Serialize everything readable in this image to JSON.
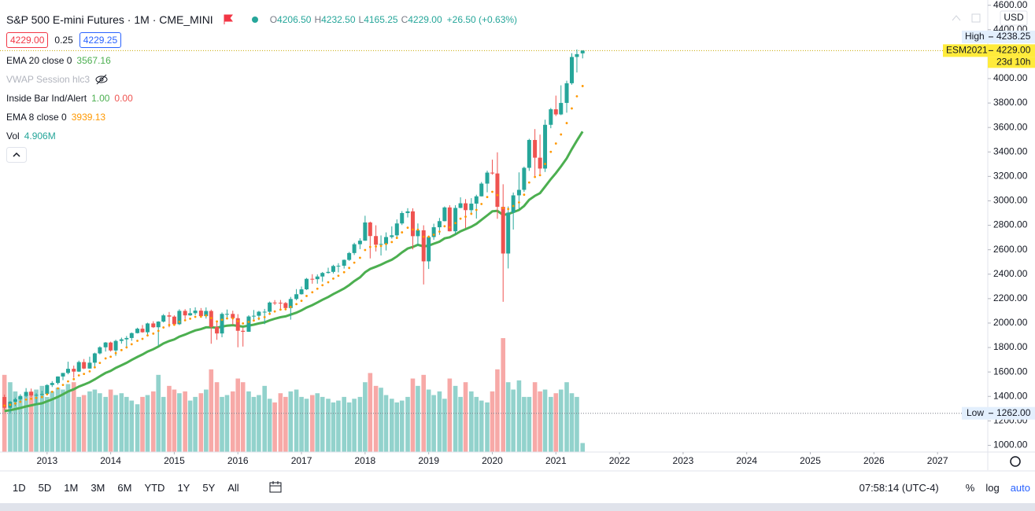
{
  "header": {
    "title": "S&P 500 E-mini Futures · 1M · CME_MINI",
    "ohlc": [
      {
        "key": "O",
        "value": "4206.50"
      },
      {
        "key": "H",
        "value": "4232.50"
      },
      {
        "key": "L",
        "value": "4165.25"
      },
      {
        "key": "C",
        "value": "4229.00"
      }
    ],
    "change": "+26.50 (+0.63%)",
    "bid": "4229.00",
    "spread": "0.25",
    "ask": "4229.25",
    "indicators": [
      {
        "name": "EMA 20 close 0",
        "values": [
          "3567.16"
        ],
        "colors": [
          "#4caf50"
        ]
      },
      {
        "name": "VWAP Session hlc3"
      },
      {
        "name": "Inside Bar Ind/Alert",
        "values": [
          "1.00",
          "0.00"
        ],
        "colors": [
          "#4caf50",
          "#ef5350"
        ]
      },
      {
        "name": "EMA 8 close 0",
        "values": [
          "3939.13"
        ],
        "colors": [
          "#ff9800"
        ]
      },
      {
        "name": "Vol",
        "values": [
          "4.906M"
        ],
        "colors": [
          "#26a69a"
        ]
      }
    ]
  },
  "toolbar": {
    "ranges": [
      "1D",
      "5D",
      "1M",
      "3M",
      "6M",
      "YTD",
      "1Y",
      "5Y",
      "All"
    ],
    "clock": "07:58:14 (UTC-4)",
    "options": [
      "%",
      "log",
      "auto"
    ]
  },
  "chart_data": {
    "type": "candlestick",
    "currency": "USD",
    "up_color": "#26a69a",
    "down_color": "#ef5350",
    "xlim": [
      2012.26,
      2027.79
    ],
    "xticks": [
      2013,
      2014,
      2015,
      2016,
      2017,
      2018,
      2019,
      2020,
      2021,
      2022,
      2023,
      2024,
      2025,
      2026,
      2027
    ],
    "ylim": [
      945,
      4643
    ],
    "yticks": [
      {
        "value": 1000,
        "label": "1000.00"
      },
      {
        "value": 1200,
        "label": "1200.00"
      },
      {
        "value": 1400,
        "label": "1400.00"
      },
      {
        "value": 1600,
        "label": "1600.00"
      },
      {
        "value": 1800,
        "label": "1800.00"
      },
      {
        "value": 2000,
        "label": "2000.00"
      },
      {
        "value": 2200,
        "label": "2200.00"
      },
      {
        "value": 2400,
        "label": "2400.00"
      },
      {
        "value": 2600,
        "label": "2600.00"
      },
      {
        "value": 2800,
        "label": "2800.00"
      },
      {
        "value": 3000,
        "label": "3000.00"
      },
      {
        "value": 3200,
        "label": "3200.00"
      },
      {
        "value": 3400,
        "label": "3400.00"
      },
      {
        "value": 3600,
        "label": "3600.00"
      },
      {
        "value": 3800,
        "label": "3800.00"
      },
      {
        "value": 4000,
        "label": "4000.00"
      },
      {
        "value": 4200,
        "label": "4200.00"
      },
      {
        "value": 4400,
        "label": "4400.00"
      },
      {
        "value": 4600,
        "label": "4600.00"
      }
    ],
    "x": [
      2012.33,
      2012.42,
      2012.5,
      2012.58,
      2012.67,
      2012.75,
      2012.83,
      2012.92,
      2013,
      2013.08,
      2013.17,
      2013.25,
      2013.33,
      2013.42,
      2013.5,
      2013.58,
      2013.67,
      2013.75,
      2013.83,
      2013.92,
      2014,
      2014.08,
      2014.17,
      2014.25,
      2014.33,
      2014.42,
      2014.5,
      2014.58,
      2014.67,
      2014.75,
      2014.83,
      2014.92,
      2015,
      2015.08,
      2015.17,
      2015.25,
      2015.33,
      2015.42,
      2015.5,
      2015.58,
      2015.67,
      2015.75,
      2015.83,
      2015.92,
      2016,
      2016.08,
      2016.17,
      2016.25,
      2016.33,
      2016.42,
      2016.5,
      2016.58,
      2016.67,
      2016.75,
      2016.83,
      2016.92,
      2017,
      2017.08,
      2017.17,
      2017.25,
      2017.33,
      2017.42,
      2017.5,
      2017.58,
      2017.67,
      2017.75,
      2017.83,
      2017.92,
      2018,
      2018.08,
      2018.17,
      2018.25,
      2018.33,
      2018.42,
      2018.5,
      2018.58,
      2018.67,
      2018.75,
      2018.83,
      2018.92,
      2019,
      2019.08,
      2019.17,
      2019.25,
      2019.33,
      2019.42,
      2019.5,
      2019.58,
      2019.67,
      2019.75,
      2019.83,
      2019.92,
      2020,
      2020.08,
      2020.17,
      2020.25,
      2020.33,
      2020.42,
      2020.5,
      2020.58,
      2020.67,
      2020.75,
      2020.83,
      2020.92,
      2021,
      2021.08,
      2021.17,
      2021.25,
      2021.33,
      2021.42
    ],
    "open": [
      1395,
      1307,
      1356,
      1377,
      1404,
      1437,
      1408,
      1413,
      1420,
      1493,
      1510,
      1563,
      1592,
      1626,
      1603,
      1681,
      1628,
      1676,
      1752,
      1802,
      1841,
      1776,
      1854,
      1867,
      1878,
      1918,
      1954,
      1925,
      1997,
      1966,
      2012,
      2063,
      2053,
      1991,
      2100,
      2063,
      2081,
      2102,
      2057,
      2099,
      1968,
      1915,
      2075,
      2075,
      2040,
      1937,
      1929,
      2054,
      2060,
      2093,
      2093,
      2168,
      2166,
      2164,
      2123,
      2197,
      2236,
      2276,
      2362,
      2359,
      2381,
      2410,
      2419,
      2467,
      2469,
      2517,
      2573,
      2645,
      2674,
      2823,
      2712,
      2641,
      2647,
      2704,
      2718,
      2815,
      2900,
      2914,
      2711,
      2759,
      2505,
      2704,
      2784,
      2834,
      2946,
      2751,
      2942,
      2980,
      2924,
      2977,
      3037,
      3141,
      3231,
      3224,
      2951,
      2569,
      2904,
      3045,
      3090,
      3270,
      3498,
      3353,
      3264,
      3622,
      3749,
      3707,
      3801,
      3962,
      4177,
      4206.5
    ],
    "high": [
      1415,
      1362,
      1390,
      1418,
      1468,
      1464,
      1426,
      1446,
      1500,
      1525,
      1564,
      1592,
      1684,
      1652,
      1693,
      1706,
      1725,
      1758,
      1810,
      1845,
      1848,
      1864,
      1881,
      1894,
      1923,
      1962,
      1984,
      2003,
      2015,
      2015,
      2074,
      2091,
      2063,
      2113,
      2114,
      2122,
      2129,
      2123,
      2128,
      2110,
      2017,
      2087,
      2111,
      2101,
      2073,
      1962,
      2064,
      2107,
      2100,
      2116,
      2176,
      2188,
      2189,
      2172,
      2214,
      2278,
      2299,
      2369,
      2400,
      2398,
      2418,
      2453,
      2477,
      2490,
      2520,
      2582,
      2657,
      2694,
      2878,
      2830,
      2800,
      2717,
      2742,
      2791,
      2848,
      2916,
      2940,
      2939,
      2815,
      2800,
      2716,
      2813,
      2860,
      2954,
      2964,
      2964,
      3029,
      3014,
      3022,
      3050,
      3154,
      3247,
      3337,
      3397,
      3136,
      2954,
      3068,
      3233,
      3280,
      3508,
      3587,
      3542,
      3664,
      3760,
      3861,
      3945,
      3983,
      4208,
      4238.25,
      4232.5
    ],
    "low": [
      1292,
      1262,
      1321,
      1353,
      1393,
      1395,
      1340,
      1384,
      1418,
      1477,
      1497,
      1533,
      1581,
      1553,
      1600,
      1623,
      1627,
      1641,
      1744,
      1767,
      1767,
      1732,
      1832,
      1810,
      1855,
      1915,
      1921,
      1898,
      1960,
      1814,
      2005,
      1966,
      1983,
      1984,
      2033,
      2059,
      2065,
      2050,
      2037,
      1831,
      1863,
      1884,
      2038,
      1986,
      1802,
      1808,
      1928,
      2030,
      2024,
      1991,
      2075,
      2148,
      2113,
      2104,
      2028,
      2187,
      2233,
      2271,
      2322,
      2322,
      2338,
      2405,
      2406,
      2415,
      2446,
      2509,
      2557,
      2605,
      2673,
      2529,
      2586,
      2553,
      2594,
      2691,
      2698,
      2802,
      2864,
      2603,
      2631,
      2316,
      2443,
      2681,
      2722,
      2832,
      2750,
      2728,
      2940,
      2778,
      2891,
      2855,
      3036,
      3070,
      3214,
      2853,
      2174,
      2447,
      2765,
      2933,
      3073,
      3245,
      3197,
      3220,
      3236,
      3594,
      3694,
      3701,
      3721,
      3950,
      4050,
      4165.25
    ],
    "close": [
      1307,
      1356,
      1377,
      1404,
      1437,
      1408,
      1413,
      1420,
      1493,
      1510,
      1563,
      1592,
      1626,
      1603,
      1681,
      1628,
      1676,
      1752,
      1802,
      1841,
      1776,
      1854,
      1867,
      1878,
      1918,
      1954,
      1925,
      1997,
      1966,
      2012,
      2063,
      2053,
      1991,
      2100,
      2063,
      2081,
      2102,
      2057,
      2099,
      1968,
      1915,
      2075,
      2075,
      2040,
      1937,
      1929,
      2054,
      2060,
      2093,
      2093,
      2168,
      2166,
      2164,
      2123,
      2197,
      2236,
      2276,
      2362,
      2359,
      2381,
      2410,
      2419,
      2467,
      2469,
      2517,
      2573,
      2645,
      2674,
      2823,
      2712,
      2641,
      2647,
      2704,
      2718,
      2815,
      2900,
      2914,
      2711,
      2759,
      2505,
      2704,
      2784,
      2834,
      2946,
      2751,
      2942,
      2980,
      2924,
      2977,
      3037,
      3141,
      3231,
      3224,
      2951,
      2569,
      2904,
      3045,
      3090,
      3270,
      3498,
      3353,
      3264,
      3622,
      3749,
      3707,
      3801,
      3962,
      4177,
      4200,
      4229
    ],
    "volume": {
      "ylim": [
        0,
        246
      ],
      "opacity": 0.5,
      "values": [
        42,
        38,
        33,
        30,
        31,
        33,
        34,
        36,
        30,
        33,
        35,
        34,
        37,
        38,
        30,
        31,
        33,
        34,
        32,
        30,
        34,
        31,
        32,
        30,
        28,
        26,
        30,
        31,
        33,
        42,
        30,
        36,
        34,
        32,
        33,
        28,
        30,
        32,
        34,
        45,
        38,
        30,
        31,
        33,
        40,
        38,
        33,
        30,
        31,
        36,
        29,
        27,
        32,
        30,
        33,
        34,
        30,
        29,
        31,
        32,
        30,
        29,
        27,
        28,
        30,
        27,
        29,
        30,
        38,
        43,
        36,
        35,
        31,
        29,
        27,
        28,
        30,
        40,
        36,
        42,
        34,
        31,
        33,
        29,
        40,
        36,
        30,
        38,
        33,
        30,
        28,
        27,
        33,
        45,
        62,
        38,
        34,
        39,
        30,
        30,
        38,
        33,
        34,
        30,
        32,
        34,
        38,
        32,
        30,
        4.906
      ]
    },
    "ema20": {
      "color": "#4caf50",
      "values": [
        1280,
        1287,
        1296,
        1306,
        1318,
        1327,
        1336,
        1344,
        1360,
        1376,
        1396,
        1417,
        1440,
        1458,
        1481,
        1497,
        1516,
        1539,
        1565,
        1592,
        1609,
        1633,
        1655,
        1675,
        1699,
        1723,
        1743,
        1767,
        1786,
        1808,
        1833,
        1853,
        1866,
        1889,
        1906,
        1923,
        1940,
        1951,
        1965,
        1966,
        1962,
        1971,
        1979,
        1983,
        1977,
        1971,
        1979,
        1987,
        1997,
        2006,
        2022,
        2036,
        2048,
        2055,
        2069,
        2085,
        2104,
        2127,
        2147,
        2168,
        2191,
        2213,
        2237,
        2258,
        2283,
        2311,
        2343,
        2374,
        2416,
        2443,
        2461,
        2478,
        2498,
        2518,
        2545,
        2578,
        2610,
        2623,
        2640,
        2627,
        2634,
        2649,
        2666,
        2693,
        2702,
        2726,
        2751,
        2768,
        2788,
        2812,
        2844,
        2881,
        2914,
        2918,
        2885,
        2892,
        2907,
        2925,
        2958,
        3009,
        3041,
        3063,
        3117,
        3177,
        3227,
        3282,
        3347,
        3423,
        3493,
        3567.16
      ]
    },
    "ema8": {
      "color": "#ff9800",
      "values": [
        1325,
        1332,
        1342,
        1356,
        1374,
        1381,
        1388,
        1395,
        1417,
        1438,
        1466,
        1494,
        1523,
        1541,
        1572,
        1584,
        1605,
        1638,
        1674,
        1711,
        1725,
        1754,
        1779,
        1801,
        1827,
        1855,
        1871,
        1899,
        1914,
        1936,
        1964,
        1984,
        1986,
        2011,
        2023,
        2036,
        2051,
        2052,
        2062,
        2041,
        2013,
        2027,
        2038,
        2038,
        2016,
        1997,
        2010,
        2021,
        2037,
        2049,
        2075,
        2095,
        2110,
        2113,
        2132,
        2155,
        2182,
        2222,
        2252,
        2281,
        2310,
        2334,
        2364,
        2387,
        2416,
        2451,
        2494,
        2534,
        2598,
        2623,
        2627,
        2631,
        2647,
        2663,
        2697,
        2742,
        2780,
        2765,
        2764,
        2706,
        2706,
        2723,
        2748,
        2792,
        2783,
        2818,
        2854,
        2870,
        2894,
        2926,
        2974,
        3031,
        3074,
        3047,
        2941,
        2933,
        2958,
        2987,
        3050,
        3150,
        3195,
        3210,
        3302,
        3401,
        3469,
        3543,
        3636,
        3756,
        3855,
        3939.13
      ]
    },
    "high_marker": {
      "label": "High",
      "value": 4238.25
    },
    "last_price": {
      "symbol": "ESM2021",
      "value": 4229,
      "value_label": "4229.00",
      "countdown": "23d 10h",
      "color": "#ffeb3b"
    },
    "low_marker": {
      "label": "Low",
      "value": 1262,
      "value_label": "1262.00"
    }
  }
}
